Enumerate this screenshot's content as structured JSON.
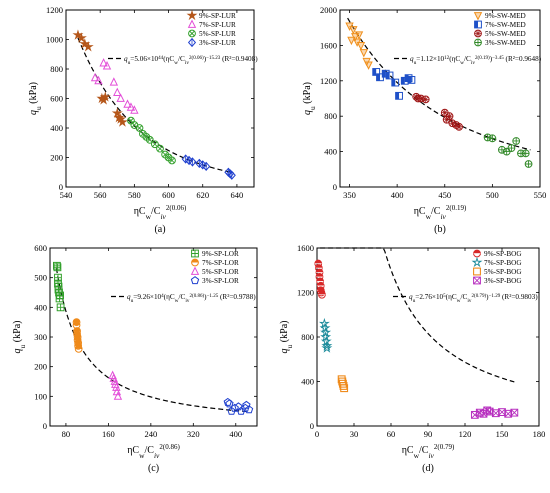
{
  "chart_data": [
    {
      "id": "a",
      "type": "scatter",
      "panel_label": "(a)",
      "xlabel_parts": [
        "ηC",
        "w",
        "/C",
        "iv",
        "2(0.06)"
      ],
      "ylabel_main": "q",
      "ylabel_sub": "u",
      "ylabel_unit": " (kPa)",
      "xlim": [
        540,
        650
      ],
      "ylim": [
        0,
        1200
      ],
      "xticks": [
        540,
        560,
        580,
        600,
        620,
        640
      ],
      "yticks": [
        0,
        200,
        400,
        600,
        800,
        1000,
        1200
      ],
      "legend_position": "top-right",
      "fit": {
        "label": "q",
        "label_sub": "u",
        "label_rest": "=5.06×10",
        "label_sup": "44",
        "label_tail": "(ηC",
        "label_tail2": "w",
        "label_tail3": "/C",
        "label_tail4": "iv",
        "label_tail5": "2(0.06)",
        "label_end": ")",
        "label_end2": "−15.23",
        "label_r2": " (R²=0.9408)",
        "a": 5.06e+44,
        "b": -15.23,
        "x_from": 547,
        "x_to": 638
      },
      "series": [
        {
          "name": "9%-SP-LUR",
          "marker": "star",
          "color": "#b5571a",
          "x": [
            547,
            549,
            551,
            553,
            561,
            562,
            563,
            570,
            571,
            572,
            573
          ],
          "y": [
            1030,
            1010,
            970,
            950,
            600,
            590,
            610,
            500,
            470,
            460,
            440
          ]
        },
        {
          "name": "7%-SP-LUR",
          "marker": "tri-up",
          "color": "#e34fd8",
          "x": [
            557,
            559,
            562,
            564,
            568,
            570,
            572,
            576,
            578,
            580
          ],
          "y": [
            740,
            720,
            840,
            820,
            710,
            640,
            600,
            560,
            540,
            520
          ]
        },
        {
          "name": "5%-SP-LUR",
          "marker": "circle-x",
          "color": "#33a02c",
          "x": [
            578,
            580,
            583,
            585,
            587,
            589,
            592,
            595,
            598,
            600,
            602
          ],
          "y": [
            450,
            420,
            400,
            360,
            340,
            320,
            290,
            260,
            220,
            200,
            180
          ]
        },
        {
          "name": "3%-SP-LUR",
          "marker": "diamond",
          "color": "#1e3fcf",
          "x": [
            610,
            612,
            614,
            618,
            620,
            622,
            635,
            636,
            637
          ],
          "y": [
            190,
            180,
            170,
            160,
            150,
            140,
            100,
            90,
            80
          ]
        }
      ]
    },
    {
      "id": "b",
      "type": "scatter",
      "panel_label": "(b)",
      "xlabel_parts": [
        "ηC",
        "w",
        "/C",
        "iv",
        "2(0.19)"
      ],
      "ylabel_main": "q",
      "ylabel_sub": "u",
      "ylabel_unit": " (kPa)",
      "xlim": [
        340,
        550
      ],
      "ylim": [
        0,
        2000
      ],
      "xticks": [
        350,
        400,
        450,
        500,
        550
      ],
      "yticks": [
        0,
        400,
        800,
        1200,
        1600,
        2000
      ],
      "legend_position": "top-right",
      "fit": {
        "label": "q",
        "label_sub": "u",
        "label_rest": "=1.12×10",
        "label_sup": "12",
        "label_tail": "(ηC",
        "label_tail2": "w",
        "label_tail3": "/C",
        "label_tail4": "iv",
        "label_tail5": "2(0.19)",
        "label_end": ")",
        "label_end2": "−3.45",
        "label_r2": " (R²=0.9648)",
        "a": 1120000000000.0,
        "b": -3.45,
        "x_from": 348,
        "x_to": 540
      },
      "series": [
        {
          "name": "9%-SW-MED",
          "marker": "tri-down",
          "color": "#f0901d",
          "x": [
            350,
            352,
            354,
            356,
            358,
            360,
            362,
            365,
            368,
            370
          ],
          "y": [
            1820,
            1660,
            1780,
            1700,
            1640,
            1720,
            1600,
            1520,
            1420,
            1380
          ]
        },
        {
          "name": "7%-SW-MED",
          "marker": "half-square",
          "color": "#1e50c8",
          "x": [
            378,
            382,
            388,
            392,
            398,
            402,
            408,
            412,
            415
          ],
          "y": [
            1300,
            1240,
            1280,
            1260,
            1180,
            1030,
            1200,
            1230,
            1210
          ]
        },
        {
          "name": "5%-SW-MED",
          "marker": "star-circle",
          "color": "#a01818",
          "x": [
            420,
            422,
            425,
            430,
            450,
            452,
            455,
            458,
            462,
            465
          ],
          "y": [
            1020,
            1000,
            1000,
            990,
            840,
            760,
            800,
            720,
            700,
            680
          ]
        },
        {
          "name": "3%-SW-MED",
          "marker": "circle-plus",
          "color": "#338a2a",
          "x": [
            495,
            500,
            510,
            515,
            520,
            525,
            530,
            535,
            538
          ],
          "y": [
            560,
            550,
            420,
            400,
            440,
            520,
            380,
            380,
            260
          ]
        }
      ]
    },
    {
      "id": "c",
      "type": "scatter",
      "panel_label": "(c)",
      "xlabel_parts": [
        "ηC",
        "w",
        "/C",
        "iv",
        "2(0.86)"
      ],
      "ylabel_main": "q",
      "ylabel_sub": "u",
      "ylabel_unit": " (kPa)",
      "xlim": [
        50,
        440
      ],
      "ylim": [
        0,
        600
      ],
      "xticks": [
        80,
        160,
        240,
        320,
        400
      ],
      "yticks": [
        0,
        100,
        200,
        300,
        400,
        500,
        600
      ],
      "legend_position": "top-right",
      "fit": {
        "label": "q",
        "label_sub": "u",
        "label_rest": "=9.26×10",
        "label_sup": "4",
        "label_tail": "(ηC",
        "label_tail2": "w",
        "label_tail3": "/C",
        "label_tail4": "iv",
        "label_tail5": "2(0.86)",
        "label_end": ")",
        "label_end2": "−1.25",
        "label_r2": " (R²=0.9788)",
        "a": 92600,
        "b": -1.25,
        "x_from": 62,
        "x_to": 420
      },
      "series": [
        {
          "name": "9%-SP-LOR",
          "marker": "square-plus",
          "color": "#33a02c",
          "x": [
            63,
            64,
            65,
            65,
            66,
            66,
            67,
            68,
            69,
            70
          ],
          "y": [
            540,
            535,
            500,
            480,
            470,
            460,
            450,
            430,
            440,
            400
          ]
        },
        {
          "name": "7%-SP-LOR",
          "marker": "half-circle",
          "color": "#ef8a1a",
          "x": [
            100,
            100,
            101,
            101,
            102,
            102,
            103,
            103,
            104
          ],
          "y": [
            350,
            340,
            320,
            310,
            300,
            290,
            280,
            270,
            260
          ]
        },
        {
          "name": "5%-SP-LOR",
          "marker": "tri-up",
          "color": "#e34fd8",
          "x": [
            168,
            170,
            172,
            173,
            175,
            176,
            178
          ],
          "y": [
            170,
            160,
            150,
            140,
            130,
            115,
            100
          ]
        },
        {
          "name": "3%-SP-LOR",
          "marker": "pentagon",
          "color": "#1e3fcf",
          "x": [
            385,
            388,
            392,
            398,
            405,
            410,
            418,
            420,
            425
          ],
          "y": [
            80,
            75,
            50,
            60,
            65,
            50,
            60,
            70,
            55
          ]
        }
      ]
    },
    {
      "id": "d",
      "type": "scatter",
      "panel_label": "(d)",
      "xlabel_parts": [
        "ηC",
        "w",
        "/C",
        "iv",
        "2(0.79)"
      ],
      "ylabel_main": "q",
      "ylabel_sub": "u",
      "ylabel_unit": " (kPa)",
      "xlim": [
        0,
        180
      ],
      "ylim": [
        0,
        1600
      ],
      "xticks": [
        0,
        30,
        60,
        90,
        120,
        150,
        180
      ],
      "yticks": [
        0,
        400,
        800,
        1200,
        1600
      ],
      "legend_position": "top-right",
      "fit": {
        "label": "q",
        "label_sub": "u",
        "label_rest": "=2.76×10",
        "label_sup": "5",
        "label_tail": "(ηC",
        "label_tail2": "w",
        "label_tail3": "/C",
        "label_tail4": "iv",
        "label_tail5": "2(0.79)",
        "label_end": ")",
        "label_end2": "−1.29",
        "label_r2": " (R²=0.9803)",
        "a": 276000,
        "b": -1.29,
        "x_from": 2.5,
        "x_to": 160
      },
      "series": [
        {
          "name": "9%-SP-BOG",
          "marker": "circle-split",
          "color": "#d82828",
          "x": [
            1,
            1.5,
            2,
            2,
            2.5,
            3,
            3,
            3.5,
            4
          ],
          "y": [
            1460,
            1420,
            1380,
            1340,
            1300,
            1260,
            1220,
            1200,
            1180
          ]
        },
        {
          "name": "7%-SP-BOG",
          "marker": "star-open",
          "color": "#1a8a9a",
          "x": [
            6,
            6.5,
            7,
            7,
            7.5,
            8,
            8
          ],
          "y": [
            920,
            880,
            840,
            800,
            760,
            720,
            700
          ]
        },
        {
          "name": "5%-SP-BOG",
          "marker": "square-open",
          "color": "#ef8a1a",
          "x": [
            20,
            20.5,
            21,
            21.5,
            22
          ],
          "y": [
            420,
            400,
            380,
            360,
            340
          ]
        },
        {
          "name": "3%-SP-BOG",
          "marker": "x-box",
          "color": "#b72ebf",
          "x": [
            128,
            132,
            135,
            138,
            140,
            145,
            150,
            155,
            160
          ],
          "y": [
            100,
            120,
            110,
            140,
            130,
            115,
            125,
            110,
            120
          ]
        }
      ]
    }
  ]
}
